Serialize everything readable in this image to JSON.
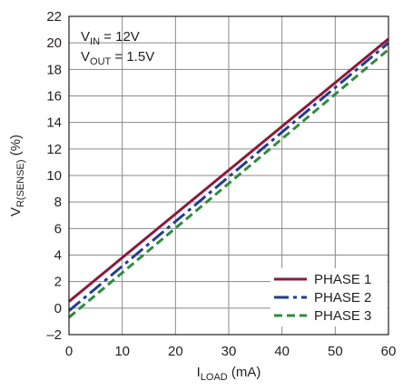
{
  "chart_data": {
    "type": "line",
    "xlabel": {
      "main": "I",
      "sub": "LOAD",
      "rest": " (mA)"
    },
    "ylabel": {
      "main": "V",
      "sub": "R(SENSE)",
      "rest": " (%)"
    },
    "xlim": [
      0,
      60
    ],
    "ylim": [
      -2,
      22
    ],
    "xticks": [
      0,
      10,
      20,
      30,
      40,
      50,
      60
    ],
    "yticks": [
      -2,
      0,
      2,
      4,
      6,
      8,
      10,
      12,
      14,
      16,
      18,
      20,
      22
    ],
    "grid": true,
    "legend_position": "bottom-right",
    "annotations": [
      {
        "main": "V",
        "sub": "IN",
        "rest": " = 12V"
      },
      {
        "main": "V",
        "sub": "OUT",
        "rest": " = 1.5V"
      }
    ],
    "series": [
      {
        "name": "PHASE 1",
        "color": "#8b1a3a",
        "dash": "solid",
        "x": [
          0,
          60
        ],
        "y": [
          0.5,
          20.3
        ]
      },
      {
        "name": "PHASE 2",
        "color": "#1f3f8f",
        "dash": "dashdot",
        "x": [
          0,
          60
        ],
        "y": [
          -0.2,
          20.0
        ]
      },
      {
        "name": "PHASE 3",
        "color": "#2e8b3e",
        "dash": "dashed",
        "x": [
          0,
          60
        ],
        "y": [
          -0.7,
          19.5
        ]
      }
    ]
  }
}
